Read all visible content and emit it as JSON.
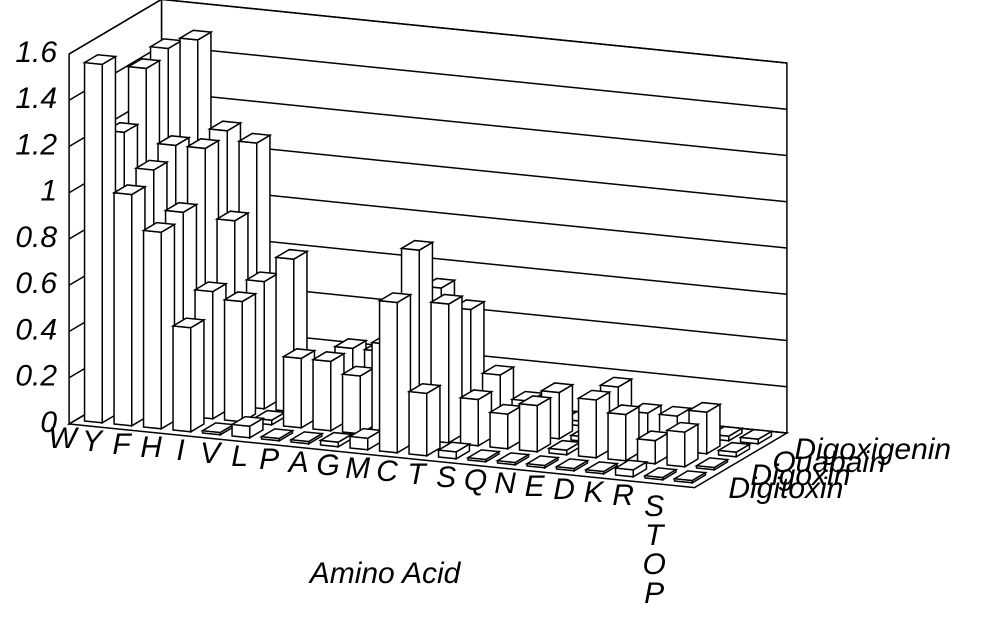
{
  "chart_data": {
    "type": "bar3d",
    "xlabel": "Amino Acid",
    "categories": [
      "W",
      "Y",
      "F",
      "H",
      "I",
      "V",
      "L",
      "P",
      "A",
      "G",
      "M",
      "C",
      "T",
      "S",
      "Q",
      "N",
      "E",
      "D",
      "K",
      "R",
      "STOP"
    ],
    "series": [
      {
        "name": "Digitoxin",
        "color": "#ffffff",
        "values": [
          1.55,
          1.0,
          0.85,
          0.45,
          0.01,
          0.05,
          0.01,
          0.01,
          0.02,
          0.05,
          0.65,
          0.27,
          0.03,
          0.01,
          0.01,
          0.01,
          0.01,
          0.01,
          0.03,
          0.01,
          0.01
        ]
      },
      {
        "name": "Digoxin",
        "color": "#ffffff",
        "values": [
          1.2,
          1.05,
          0.88,
          0.55,
          0.52,
          0.02,
          0.3,
          0.3,
          0.25,
          0.4,
          0.82,
          0.6,
          0.2,
          0.15,
          0.2,
          0.02,
          0.25,
          0.2,
          0.1,
          0.15,
          0.01
        ]
      },
      {
        "name": "Ouabain",
        "color": "#ffffff",
        "values": [
          1.42,
          1.1,
          1.1,
          0.8,
          0.55,
          0.66,
          0.03,
          0.3,
          0.3,
          0.4,
          0.6,
          0.52,
          0.25,
          0.15,
          0.2,
          0.02,
          0.25,
          0.15,
          0.15,
          0.18,
          0.02
        ]
      },
      {
        "name": "Digoxigenin",
        "color": "#ffffff",
        "values": [
          1.45,
          1.5,
          1.12,
          1.08,
          0.02,
          0.02,
          0.02,
          0.02,
          0.02,
          0.02,
          0.02,
          0.02,
          0.02,
          0.02,
          0.02,
          0.02,
          0.02,
          0.02,
          0.02,
          0.02,
          0.02
        ]
      }
    ],
    "ylim": [
      0,
      1.6
    ],
    "yticks": [
      0,
      0.2,
      0.4,
      0.6,
      0.8,
      1,
      1.2,
      1.4,
      1.6
    ],
    "grid": true
  }
}
